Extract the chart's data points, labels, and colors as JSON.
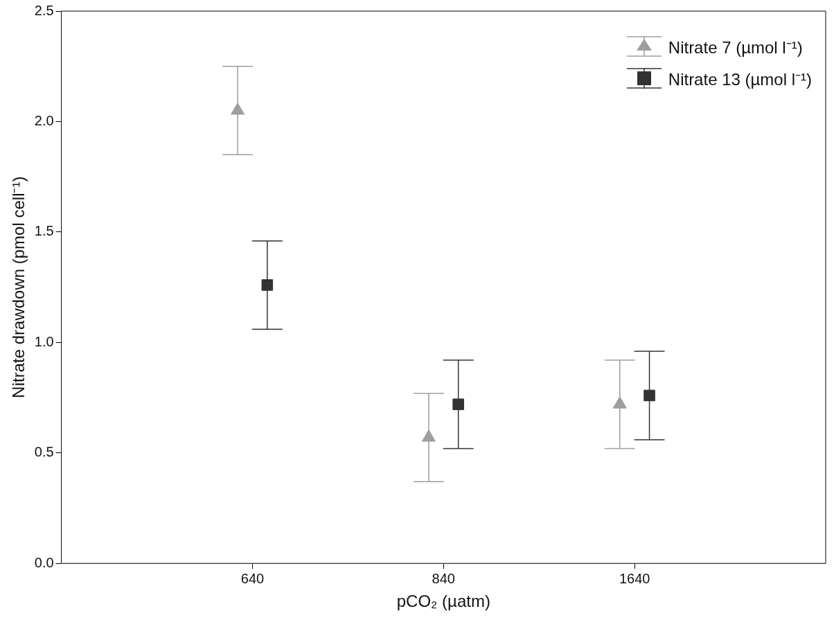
{
  "chart_data": {
    "type": "scatter",
    "xlabel": "pCO₂ (µatm)",
    "ylabel": "Nitrate drawdown (pmol cell⁻¹)",
    "categories": [
      "640",
      "840",
      "1640"
    ],
    "series": [
      {
        "name": "Nitrate 7 (µmol l⁻¹)",
        "color": "#9e9e9e",
        "marker": "triangle",
        "values": [
          2.05,
          0.57,
          0.72
        ],
        "errors": [
          0.2,
          0.2,
          0.2
        ]
      },
      {
        "name": "Nitrate 13 (µmol l⁻¹)",
        "color": "#333333",
        "marker": "square",
        "values": [
          1.26,
          0.72,
          0.76
        ],
        "errors": [
          0.2,
          0.2,
          0.2
        ]
      }
    ],
    "ylim": [
      0,
      2.5
    ],
    "yticks": [
      {
        "value": 0,
        "label": "0.0"
      },
      0.5,
      {
        "value": 1,
        "label": "1.0"
      },
      1.5,
      {
        "value": 2,
        "label": "2.0"
      },
      2.5
    ],
    "grid": false,
    "legend": "top right"
  }
}
